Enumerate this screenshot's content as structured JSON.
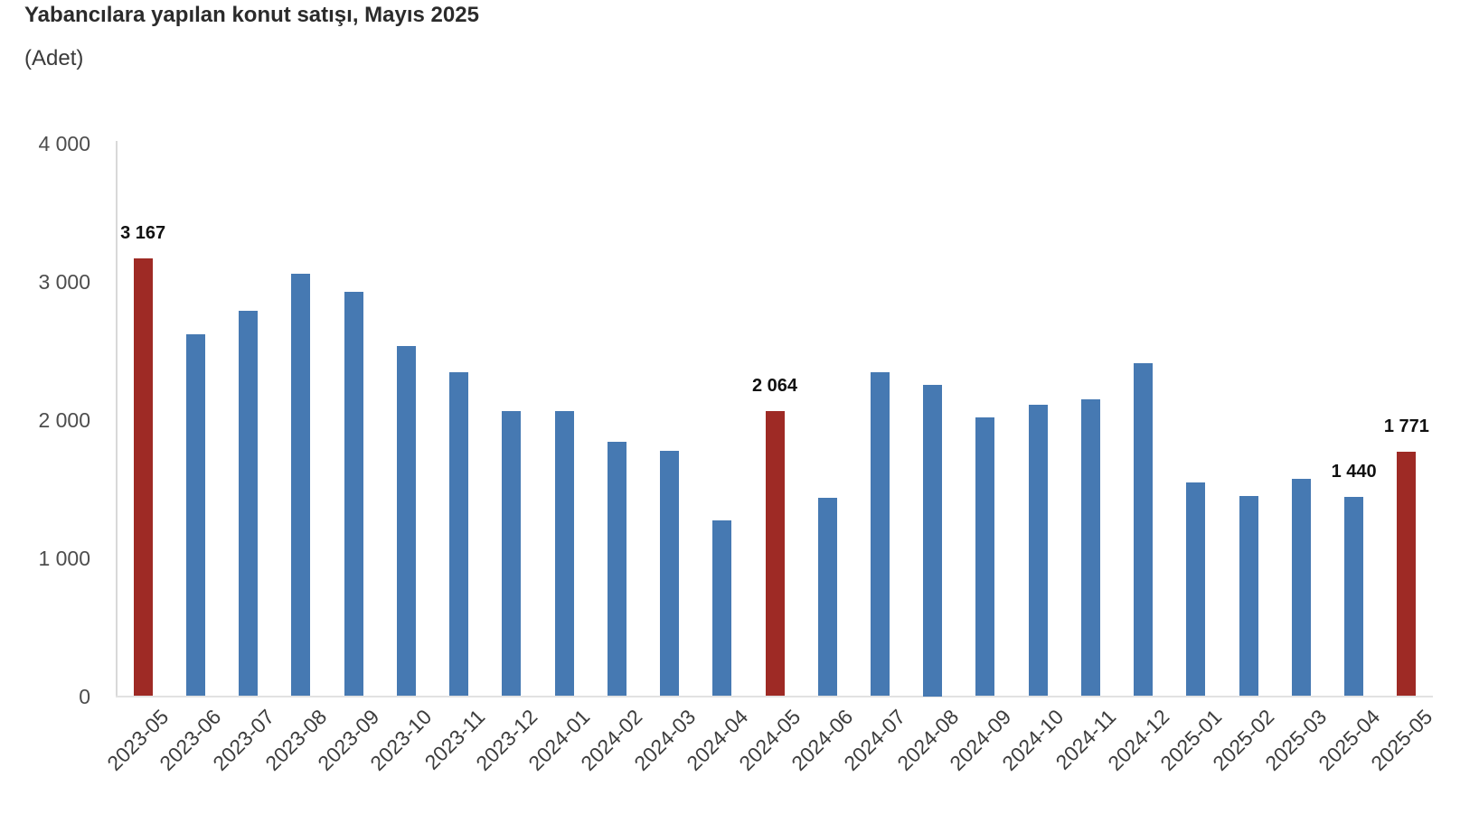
{
  "header": {
    "title": "Yabancılara yapılan konut satışı, Mayıs 2025",
    "subtitle": "(Adet)"
  },
  "chart_data": {
    "type": "bar",
    "title": "Yabancılara yapılan konut satışı, Mayıs 2025",
    "subtitle": "(Adet)",
    "xlabel": "",
    "ylabel": "Adet",
    "ylim": [
      0,
      4000
    ],
    "grid": false,
    "legend": "none",
    "bar_color": "#4679b2",
    "highlight_color": "#9e2a25",
    "axis_line_color": "#d9d9d9",
    "y_ticks": [
      {
        "value": 0,
        "label": "0"
      },
      {
        "value": 1000,
        "label": "1 000"
      },
      {
        "value": 2000,
        "label": "2 000"
      },
      {
        "value": 3000,
        "label": "3 000"
      },
      {
        "value": 4000,
        "label": "4 000"
      }
    ],
    "categories": [
      "2023-05",
      "2023-06",
      "2023-07",
      "2023-08",
      "2023-09",
      "2023-10",
      "2023-11",
      "2023-12",
      "2024-01",
      "2024-02",
      "2024-03",
      "2024-04",
      "2024-05",
      "2024-06",
      "2024-07",
      "2024-08",
      "2024-09",
      "2024-10",
      "2024-11",
      "2024-12",
      "2025-01",
      "2025-02",
      "2025-03",
      "2025-04",
      "2025-05"
    ],
    "values": [
      3167,
      2620,
      2790,
      3055,
      2925,
      2530,
      2340,
      2060,
      2060,
      1840,
      1775,
      1270,
      2064,
      1435,
      2345,
      2250,
      2015,
      2110,
      2150,
      2410,
      1545,
      1450,
      1570,
      1440,
      1771
    ],
    "highlighted": [
      "2023-05",
      "2024-05",
      "2025-05"
    ],
    "data_labels": {
      "2023-05": "3 167",
      "2024-05": "2 064",
      "2025-04": "1 440",
      "2025-05": "1 771"
    }
  }
}
